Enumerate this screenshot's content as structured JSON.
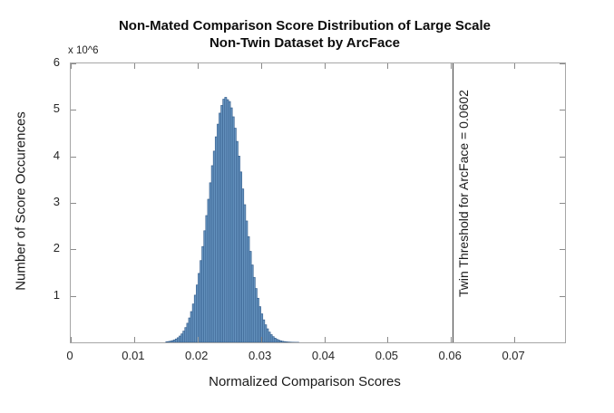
{
  "figure": {
    "title_line1": "Non-Mated Comparison Score Distribution of Large Scale",
    "title_line2": "Non-Twin Dataset by ArcFace",
    "y_multiplier_label": "x 10^6",
    "xlabel": "Normalized Comparison Scores",
    "ylabel": "Number of Score Occurences"
  },
  "axes": {
    "x_tick_labels": [
      "0",
      "0.01",
      "0.02",
      "0.03",
      "0.04",
      "0.05",
      "0.06",
      "0.07"
    ],
    "x_tick_values": [
      0,
      0.01,
      0.02,
      0.03,
      0.04,
      0.05,
      0.06,
      0.07
    ],
    "y_tick_labels": [
      "1",
      "2",
      "3",
      "4",
      "5",
      "6"
    ],
    "y_tick_values": [
      1,
      2,
      3,
      4,
      5,
      6
    ]
  },
  "colors": {
    "bar_fill": "#6795c1",
    "bar_edge": "#38618f",
    "threshold_line": "#3f3f3f",
    "axis_box": "#a6a6a6",
    "tick": "#8a8a8a",
    "text": "#1a1a1a"
  },
  "chart_data": {
    "type": "bar",
    "title": "Non-Mated Comparison Score Distribution of Large Scale Non-Twin Dataset by ArcFace",
    "xlabel": "Normalized Comparison Scores",
    "ylabel": "Number of Score Occurences",
    "y_unit": "x 10^6",
    "xlim": [
      0,
      0.078
    ],
    "ylim": [
      0,
      6
    ],
    "grid": false,
    "legend": "none",
    "bin_start": 0.015,
    "bin_width": 0.0003,
    "counts_millions": [
      0.012,
      0.018,
      0.026,
      0.037,
      0.052,
      0.073,
      0.1,
      0.136,
      0.182,
      0.242,
      0.318,
      0.411,
      0.525,
      0.662,
      0.825,
      1.015,
      1.234,
      1.483,
      1.759,
      2.061,
      2.4,
      2.727,
      3.078,
      3.432,
      3.8,
      4.113,
      4.421,
      4.693,
      4.93,
      5.096,
      5.23,
      5.27,
      5.22,
      5.18,
      5.044,
      4.851,
      4.607,
      4.322,
      4.006,
      3.666,
      3.3,
      2.961,
      2.611,
      2.274,
      1.958,
      1.664,
      1.397,
      1.158,
      0.949,
      0.768,
      0.613,
      0.484,
      0.378,
      0.291,
      0.221,
      0.166,
      0.123,
      0.09,
      0.065,
      0.047,
      0.033,
      0.023,
      0.016,
      0.011,
      0.007,
      0.005,
      0.003,
      0.002,
      0.001,
      0.001
    ],
    "threshold_line": {
      "x": 0.0602,
      "label": "Twin Threshold for ArcFace = 0.0602"
    }
  }
}
